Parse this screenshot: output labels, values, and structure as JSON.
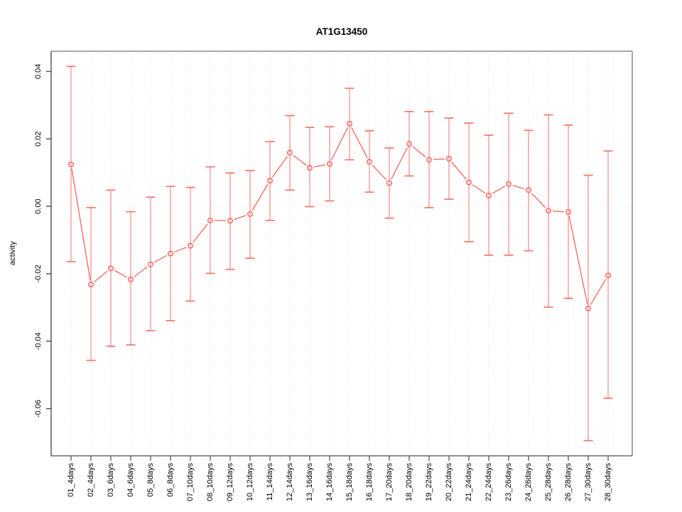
{
  "title": "AT1G13450",
  "chart_data": {
    "type": "line",
    "title": "AT1G13450",
    "xlabel": "",
    "ylabel": "activity",
    "legend_position": "none",
    "grid": "vertical dotted gridlines at each category; dotted horizontal line at y=0",
    "point_style": "open circles with vertical error bars, R type='b' segments",
    "series_color": "#f4645c",
    "ylim": [
      -0.074,
      0.046
    ],
    "yticks": [
      "0.04",
      "0.02",
      "0.00",
      "-0.02",
      "-0.04",
      "-0.06"
    ],
    "ytick_values": [
      0.04,
      0.02,
      0.0,
      -0.02,
      -0.04,
      -0.06
    ],
    "categories": [
      "01_4days",
      "02_4days",
      "03_6days",
      "04_6days",
      "05_8days",
      "06_8days",
      "07_10days",
      "08_10days",
      "09_12days",
      "10_12days",
      "11_14days",
      "12_14days",
      "13_16days",
      "14_16days",
      "15_18days",
      "16_18days",
      "17_20days",
      "18_20days",
      "19_22days",
      "20_22days",
      "21_24days",
      "22_24days",
      "23_26days",
      "24_26days",
      "25_28days",
      "26_28days",
      "27_30days",
      "28_30days"
    ],
    "values": [
      0.0124,
      -0.0232,
      -0.0184,
      -0.0217,
      -0.0172,
      -0.014,
      -0.0117,
      -0.0042,
      -0.0043,
      -0.0023,
      0.0076,
      0.0159,
      0.0114,
      0.0126,
      0.0245,
      0.0132,
      0.0069,
      0.0185,
      0.0138,
      0.0141,
      0.0071,
      0.0032,
      0.0066,
      0.0048,
      -0.0013,
      -0.0017,
      -0.0303,
      -0.0205
    ],
    "error_high": [
      0.0415,
      -0.0004,
      0.0048,
      -0.0016,
      0.0027,
      0.0059,
      0.0056,
      0.0117,
      0.0099,
      0.0106,
      0.0192,
      0.0269,
      0.0234,
      0.0236,
      0.035,
      0.0224,
      0.0173,
      0.0281,
      0.0281,
      0.0262,
      0.0247,
      0.0211,
      0.0276,
      0.0225,
      0.0271,
      0.0241,
      0.0092,
      0.0164
    ],
    "error_low": [
      -0.0164,
      -0.0457,
      -0.0415,
      -0.0411,
      -0.0369,
      -0.0339,
      -0.0281,
      -0.0199,
      -0.0187,
      -0.0154,
      -0.0042,
      0.0048,
      -0.0001,
      0.0016,
      0.0138,
      0.0042,
      -0.0035,
      0.009,
      -0.0004,
      0.0021,
      -0.0105,
      -0.0145,
      -0.0145,
      -0.0132,
      -0.0299,
      -0.0273,
      -0.0695,
      -0.0569
    ]
  },
  "colors": {
    "series": "#f4645c",
    "grid": "#dcdcdc",
    "frame": "#8c8c8c",
    "axis": "#4d4d4d",
    "text": "#000000"
  }
}
